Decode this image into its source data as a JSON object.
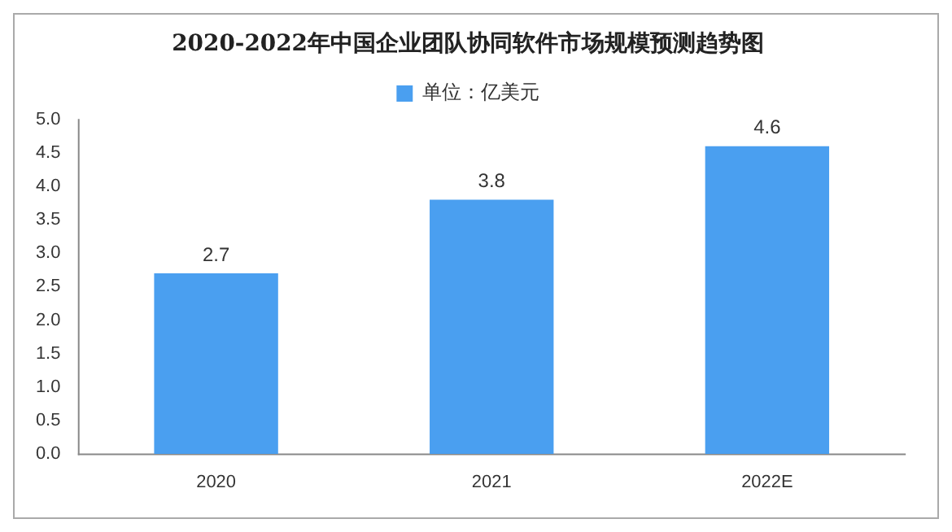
{
  "chart_data": {
    "type": "bar",
    "title": "2020-2022年中国企业团队协同软件市场规模预测趋势图",
    "categories": [
      "2020",
      "2021",
      "2022E"
    ],
    "series": [
      {
        "name": "单位：亿美元",
        "color": "#4a9ff0",
        "values": [
          2.7,
          3.8,
          4.6
        ]
      }
    ],
    "ylim": [
      0,
      5
    ],
    "yticks": [
      {
        "value": 0,
        "label": "0.0"
      },
      {
        "value": 0.5,
        "label": "0.5"
      },
      {
        "value": 1,
        "label": "1.0"
      },
      {
        "value": 1.5,
        "label": "1.5"
      },
      {
        "value": 2,
        "label": "2.0"
      },
      {
        "value": 2.5,
        "label": "2.5"
      },
      {
        "value": 3,
        "label": "3.0"
      },
      {
        "value": 3.5,
        "label": "3.5"
      },
      {
        "value": 4,
        "label": "4.0"
      },
      {
        "value": 4.5,
        "label": "4.5"
      },
      {
        "value": 5,
        "label": "5.0"
      }
    ],
    "data_labels": true,
    "legend": "top",
    "grid": false
  }
}
